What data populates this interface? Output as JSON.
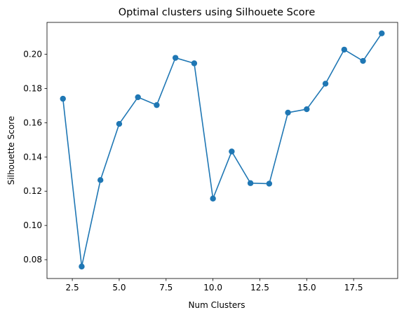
{
  "chart_data": {
    "type": "line",
    "title": "Optimal clusters using Silhouete Score",
    "xlabel": "Num Clusters",
    "ylabel": "Silhouette Score",
    "xlim": [
      1.15,
      19.85
    ],
    "ylim": [
      0.069,
      0.2186
    ],
    "xticks": [
      2.5,
      5.0,
      7.5,
      10.0,
      12.5,
      15.0,
      17.5
    ],
    "xtick_labels": [
      "2.5",
      "5.0",
      "7.5",
      "10.0",
      "12.5",
      "15.0",
      "17.5"
    ],
    "yticks": [
      0.08,
      0.1,
      0.12,
      0.14,
      0.16,
      0.18,
      0.2
    ],
    "ytick_labels": [
      "0.08",
      "0.10",
      "0.12",
      "0.14",
      "0.16",
      "0.18",
      "0.20"
    ],
    "grid": false,
    "marker": "circle",
    "color": "#1f77b4",
    "series": [
      {
        "x": [
          2,
          3,
          4,
          5,
          6,
          7,
          8,
          9,
          10,
          11,
          12,
          13,
          14,
          15,
          16,
          17,
          18,
          19
        ],
        "values": [
          0.174,
          0.076,
          0.1265,
          0.1593,
          0.1749,
          0.1703,
          0.1979,
          0.1947,
          0.1157,
          0.1432,
          0.1247,
          0.1244,
          0.1659,
          0.1679,
          0.1828,
          0.2027,
          0.1961,
          0.2122
        ]
      }
    ]
  }
}
